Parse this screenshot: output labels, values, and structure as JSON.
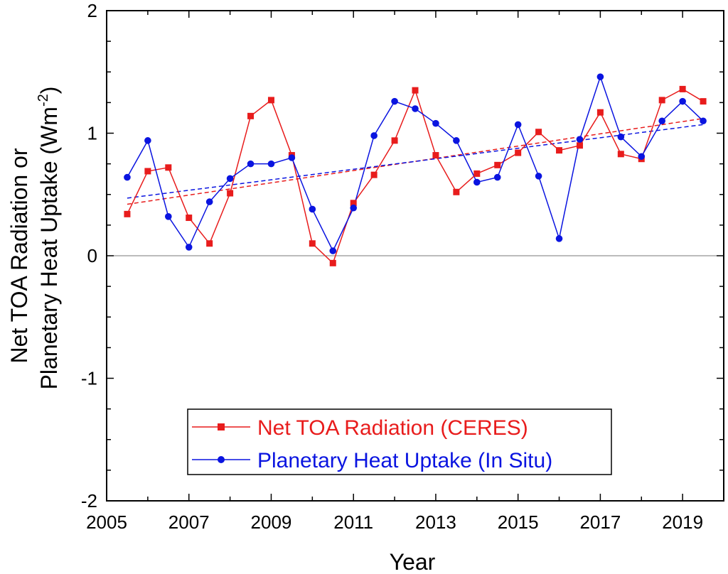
{
  "chart_data": {
    "type": "line",
    "title": "",
    "xlabel": "Year",
    "ylabel_line1": "Net TOA Radiation or",
    "ylabel_line2_main": "Planetary Heat Uptake (Wm",
    "ylabel_line2_sup": "-2",
    "ylabel_line2_close": ")",
    "xlim": [
      2005,
      2020
    ],
    "ylim": [
      -2,
      2
    ],
    "x_tick_labels": [
      "2005",
      "2007",
      "2009",
      "2011",
      "2013",
      "2015",
      "2017",
      "2019"
    ],
    "y_tick_labels": [
      "2",
      "1",
      "0",
      "-1",
      "-2"
    ],
    "zero_line": true,
    "legend_position": "bottom-center",
    "series": [
      {
        "name": "Net TOA Radiation (CERES)",
        "color": "#e81c1c",
        "marker": "square",
        "x": [
          2005.5,
          2006,
          2006.5,
          2007,
          2007.5,
          2008,
          2008.5,
          2009,
          2009.5,
          2010,
          2010.5,
          2011,
          2011.5,
          2012,
          2012.5,
          2013,
          2013.5,
          2014,
          2014.5,
          2015,
          2015.5,
          2016,
          2016.5,
          2017,
          2017.5,
          2018,
          2018.5,
          2019,
          2019.5
        ],
        "values": [
          0.34,
          0.69,
          0.72,
          0.31,
          0.1,
          0.51,
          1.14,
          1.27,
          0.82,
          0.1,
          -0.06,
          0.43,
          0.66,
          0.94,
          1.35,
          0.82,
          0.52,
          0.67,
          0.74,
          0.84,
          1.01,
          0.86,
          0.9,
          1.17,
          0.83,
          0.79,
          1.27,
          1.36,
          1.26
        ],
        "trend": [
          0.42,
          1.12
        ]
      },
      {
        "name": "Planetary Heat Uptake (In Situ)",
        "color": "#0a14e0",
        "marker": "circle",
        "x": [
          2005.5,
          2006,
          2006.5,
          2007,
          2007.5,
          2008,
          2008.5,
          2009,
          2009.5,
          2010,
          2010.5,
          2011,
          2011.5,
          2012,
          2012.5,
          2013,
          2013.5,
          2014,
          2014.5,
          2015,
          2015.5,
          2016,
          2016.5,
          2017,
          2017.5,
          2018,
          2018.5,
          2019,
          2019.5
        ],
        "values": [
          0.64,
          0.94,
          0.32,
          0.07,
          0.44,
          0.63,
          0.75,
          0.75,
          0.8,
          0.38,
          0.04,
          0.39,
          0.98,
          1.26,
          1.2,
          1.08,
          0.94,
          0.6,
          0.64,
          1.07,
          0.65,
          0.14,
          0.95,
          1.46,
          0.97,
          0.81,
          1.1,
          1.26,
          1.1
        ],
        "trend": [
          0.47,
          1.07
        ]
      }
    ]
  }
}
